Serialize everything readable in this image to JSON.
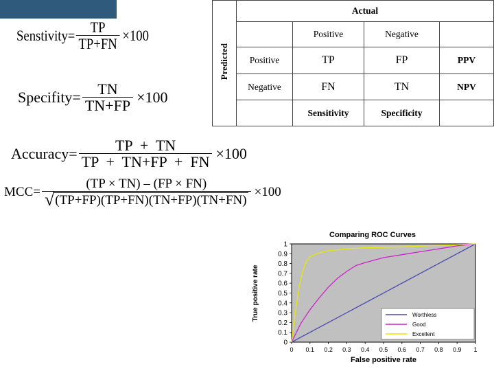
{
  "formulas": {
    "sensitivity": {
      "label": "Senstivity=",
      "num": "TP",
      "den": "TP+FN",
      "mult": "×100"
    },
    "specificity": {
      "label": "Specifity=",
      "num": "TN",
      "den": "TN+FP",
      "mult": "×100"
    },
    "accuracy": {
      "label": "Accuracy=",
      "num": "TP  +  TN",
      "den": "TP  +  TN+FP  +  FN",
      "mult": "×100"
    },
    "mcc": {
      "label": "MCC=",
      "num": "(TP × TN) – (FP × FN)",
      "den": "(TP+FP)(TP+FN)(TN+FP)(TN+FN)",
      "mult": "×100"
    }
  },
  "table": {
    "actual": "Actual",
    "predicted": "Predicted",
    "col_positive": "Positive",
    "col_negative": "Negative",
    "row_positive": "Positive",
    "row_negative": "Negative",
    "tp": "TP",
    "fp": "FP",
    "fn": "FN",
    "tn": "TN",
    "ppv": "PPV",
    "npv": "NPV",
    "sensitivity": "Sensitivity",
    "specificity": "Specificity"
  },
  "chart_data": {
    "type": "line",
    "title": "Comparing ROC Curves",
    "xlabel": "False positive rate",
    "ylabel": "True positive rate",
    "xlim": [
      0,
      1
    ],
    "ylim": [
      0,
      1
    ],
    "xticks": [
      "0",
      "0.1",
      "0.2",
      "0.3",
      "0.4",
      "0.5",
      "0.6",
      "0.7",
      "0.8",
      "0.9",
      "1"
    ],
    "yticks": [
      "0",
      "0.1",
      "0.2",
      "0.3",
      "0.4",
      "0.5",
      "0.6",
      "0.7",
      "0.8",
      "0.9",
      "1"
    ],
    "legend_position": "bottom-right",
    "plot_background": "#c0c0c0",
    "series": [
      {
        "name": "Worthless",
        "color": "#4a4ab0",
        "x": [
          0,
          1
        ],
        "y": [
          0,
          1
        ]
      },
      {
        "name": "Good",
        "color": "#cc22cc",
        "x": [
          0,
          0.05,
          0.1,
          0.15,
          0.2,
          0.25,
          0.3,
          0.35,
          0.4,
          0.5,
          0.6,
          0.7,
          0.8,
          0.9,
          1.0
        ],
        "y": [
          0,
          0.19,
          0.33,
          0.45,
          0.56,
          0.65,
          0.72,
          0.78,
          0.81,
          0.86,
          0.89,
          0.92,
          0.95,
          0.98,
          1.0
        ]
      },
      {
        "name": "Excellent",
        "color": "#e8e800",
        "x": [
          0,
          0.02,
          0.04,
          0.06,
          0.08,
          0.1,
          0.15,
          0.2,
          0.3,
          0.4,
          0.6,
          0.8,
          1.0
        ],
        "y": [
          0,
          0.3,
          0.55,
          0.72,
          0.82,
          0.87,
          0.91,
          0.93,
          0.95,
          0.96,
          0.97,
          0.985,
          1.0
        ]
      }
    ]
  }
}
